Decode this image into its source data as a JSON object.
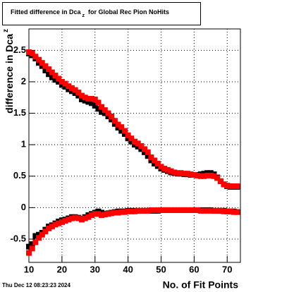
{
  "chart_data": {
    "type": "scatter",
    "title_parts": [
      "Fitted difference in Dca",
      "z",
      "for Global Rec Pion NoHits"
    ],
    "ylabel_parts": [
      "difference in Dca",
      "z"
    ],
    "xlabel": "No. of Fit Points",
    "timestamp": "Thu Dec 12 08:23:23 2024",
    "xlim": [
      10,
      74
    ],
    "ylim": [
      -0.87,
      2.84
    ],
    "xticks": [
      10,
      20,
      30,
      40,
      50,
      60,
      70
    ],
    "yticks": [
      -0.5,
      0,
      0.5,
      1,
      1.5,
      2,
      2.5
    ],
    "grid": true,
    "x": [
      10,
      11,
      12,
      13,
      14,
      15,
      16,
      17,
      18,
      19,
      20,
      21,
      22,
      23,
      24,
      25,
      26,
      27,
      28,
      29,
      30,
      31,
      32,
      33,
      34,
      35,
      36,
      37,
      38,
      39,
      40,
      41,
      42,
      43,
      44,
      45,
      46,
      47,
      48,
      49,
      50,
      51,
      52,
      53,
      54,
      55,
      56,
      57,
      58,
      59,
      60,
      61,
      62,
      63,
      64,
      65,
      66,
      67,
      68,
      69,
      70,
      71,
      72,
      73
    ],
    "series": [
      {
        "color": "#000000",
        "values": [
          2.45,
          2.42,
          2.37,
          2.3,
          2.25,
          2.18,
          2.12,
          2.07,
          2.03,
          2.0,
          1.95,
          1.92,
          1.88,
          1.85,
          1.82,
          1.78,
          1.72,
          1.7,
          1.68,
          1.66,
          1.62,
          1.57,
          1.52,
          1.5,
          1.45,
          1.4,
          1.33,
          1.27,
          1.22,
          1.17,
          1.1,
          1.05,
          1.0,
          0.97,
          0.93,
          0.88,
          0.82,
          0.75,
          0.7,
          0.66,
          0.62,
          0.6,
          0.58,
          0.56,
          0.55,
          0.54,
          0.54,
          0.53,
          0.53,
          0.52,
          0.52,
          0.52,
          0.53,
          0.54,
          0.55,
          0.55,
          0.53,
          0.48,
          0.42,
          0.37,
          0.34,
          0.33,
          0.33,
          0.33
        ]
      },
      {
        "color": "#000000",
        "values": [
          -0.62,
          -0.58,
          -0.45,
          -0.43,
          -0.4,
          -0.35,
          -0.3,
          -0.28,
          -0.25,
          -0.22,
          -0.2,
          -0.19,
          -0.17,
          -0.15,
          -0.15,
          -0.16,
          -0.18,
          -0.15,
          -0.12,
          -0.1,
          -0.08,
          -0.06,
          -0.08,
          -0.1,
          -0.09,
          -0.08,
          -0.07,
          -0.06,
          -0.06,
          -0.06,
          -0.05,
          -0.05,
          -0.05,
          -0.05,
          -0.05,
          -0.05,
          -0.05,
          -0.05,
          -0.05,
          -0.05,
          -0.04,
          -0.04,
          -0.04,
          -0.04,
          -0.04,
          -0.04,
          -0.04,
          -0.04,
          -0.04,
          -0.04,
          -0.04,
          -0.04,
          -0.04,
          -0.04,
          -0.04,
          -0.04,
          -0.05,
          -0.05,
          -0.05,
          -0.05,
          -0.06,
          -0.06,
          -0.06,
          -0.07
        ]
      },
      {
        "color": "#ff0000",
        "values": [
          2.47,
          2.45,
          2.4,
          2.35,
          2.3,
          2.25,
          2.2,
          2.15,
          2.1,
          2.05,
          2.0,
          1.97,
          1.93,
          1.9,
          1.87,
          1.83,
          1.78,
          1.75,
          1.73,
          1.73,
          1.72,
          1.67,
          1.6,
          1.55,
          1.5,
          1.45,
          1.38,
          1.32,
          1.28,
          1.22,
          1.15,
          1.1,
          1.05,
          1.02,
          0.98,
          0.93,
          0.88,
          0.8,
          0.75,
          0.7,
          0.65,
          0.62,
          0.6,
          0.58,
          0.56,
          0.55,
          0.55,
          0.54,
          0.54,
          0.53,
          0.52,
          0.51,
          0.5,
          0.5,
          0.51,
          0.51,
          0.5,
          0.47,
          0.42,
          0.37,
          0.35,
          0.34,
          0.34,
          0.34
        ]
      },
      {
        "color": "#ff0000",
        "values": [
          -0.72,
          -0.65,
          -0.55,
          -0.48,
          -0.43,
          -0.38,
          -0.33,
          -0.3,
          -0.27,
          -0.25,
          -0.23,
          -0.21,
          -0.19,
          -0.17,
          -0.16,
          -0.17,
          -0.19,
          -0.17,
          -0.15,
          -0.12,
          -0.1,
          -0.1,
          -0.12,
          -0.11,
          -0.1,
          -0.09,
          -0.08,
          -0.08,
          -0.07,
          -0.07,
          -0.06,
          -0.06,
          -0.06,
          -0.05,
          -0.05,
          -0.05,
          -0.05,
          -0.04,
          -0.04,
          -0.04,
          -0.04,
          -0.04,
          -0.04,
          -0.04,
          -0.04,
          -0.04,
          -0.04,
          -0.04,
          -0.04,
          -0.04,
          -0.04,
          -0.04,
          -0.05,
          -0.05,
          -0.05,
          -0.05,
          -0.05,
          -0.05,
          -0.05,
          -0.06,
          -0.06,
          -0.06,
          -0.07,
          -0.07
        ]
      }
    ]
  }
}
